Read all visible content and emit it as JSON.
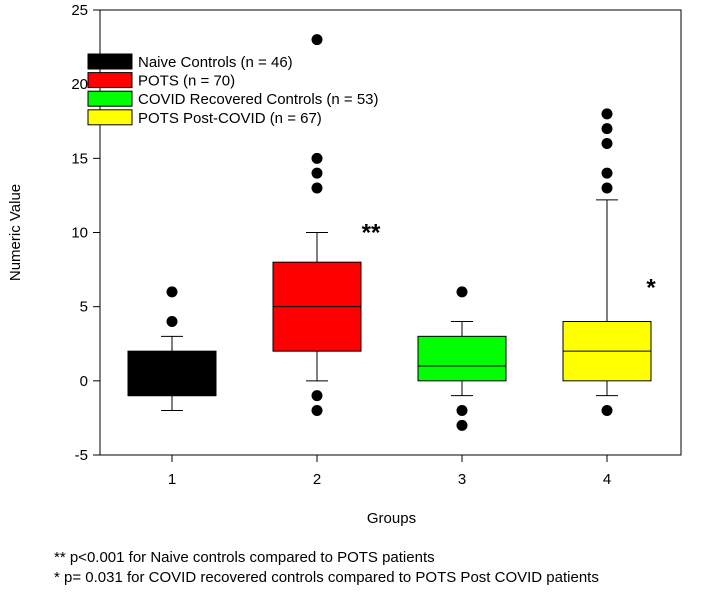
{
  "chart_data": {
    "type": "box",
    "xlabel": "Groups",
    "ylabel": "Numeric Value",
    "ylim": [
      -5,
      25
    ],
    "yticks": [
      -5,
      0,
      5,
      10,
      15,
      20,
      25
    ],
    "categories": [
      "1",
      "2",
      "3",
      "4"
    ],
    "legend_position": "top-left",
    "series": [
      {
        "name": "Naive Controls (n = 46)",
        "color": "#000000",
        "category": "1",
        "whisker_low": -2,
        "q1": -1,
        "median": -1,
        "q3": 2,
        "whisker_high": 3,
        "outliers": [
          4,
          6
        ]
      },
      {
        "name": "POTS (n = 70)",
        "color": "#ff0000",
        "category": "2",
        "whisker_low": 0,
        "q1": 2,
        "median": 5,
        "q3": 8,
        "whisker_high": 10,
        "outliers": [
          -2,
          -1,
          13,
          14,
          15,
          23
        ]
      },
      {
        "name": "COVID Recovered Controls (n = 53)",
        "color": "#00ff00",
        "category": "3",
        "whisker_low": -1,
        "q1": 0,
        "median": 1,
        "q3": 3,
        "whisker_high": 4,
        "outliers": [
          -3,
          -2,
          6
        ]
      },
      {
        "name": "POTS Post-COVID (n = 67)",
        "color": "#ffff00",
        "category": "4",
        "whisker_low": -1,
        "q1": 0,
        "median": 2,
        "q3": 4,
        "whisker_high": 12.2,
        "outliers": [
          -2,
          13,
          14,
          16,
          17,
          18
        ]
      }
    ],
    "annotations": [
      {
        "text": "**",
        "category": "2",
        "y": 10
      },
      {
        "text": "*",
        "category": "4",
        "y": 6.3
      }
    ]
  },
  "footnotes": {
    "line1": "** p<0.001 for Naive controls compared to POTS patients",
    "line2": "* p= 0.031 for COVID recovered controls compared to POTS Post COVID patients"
  }
}
